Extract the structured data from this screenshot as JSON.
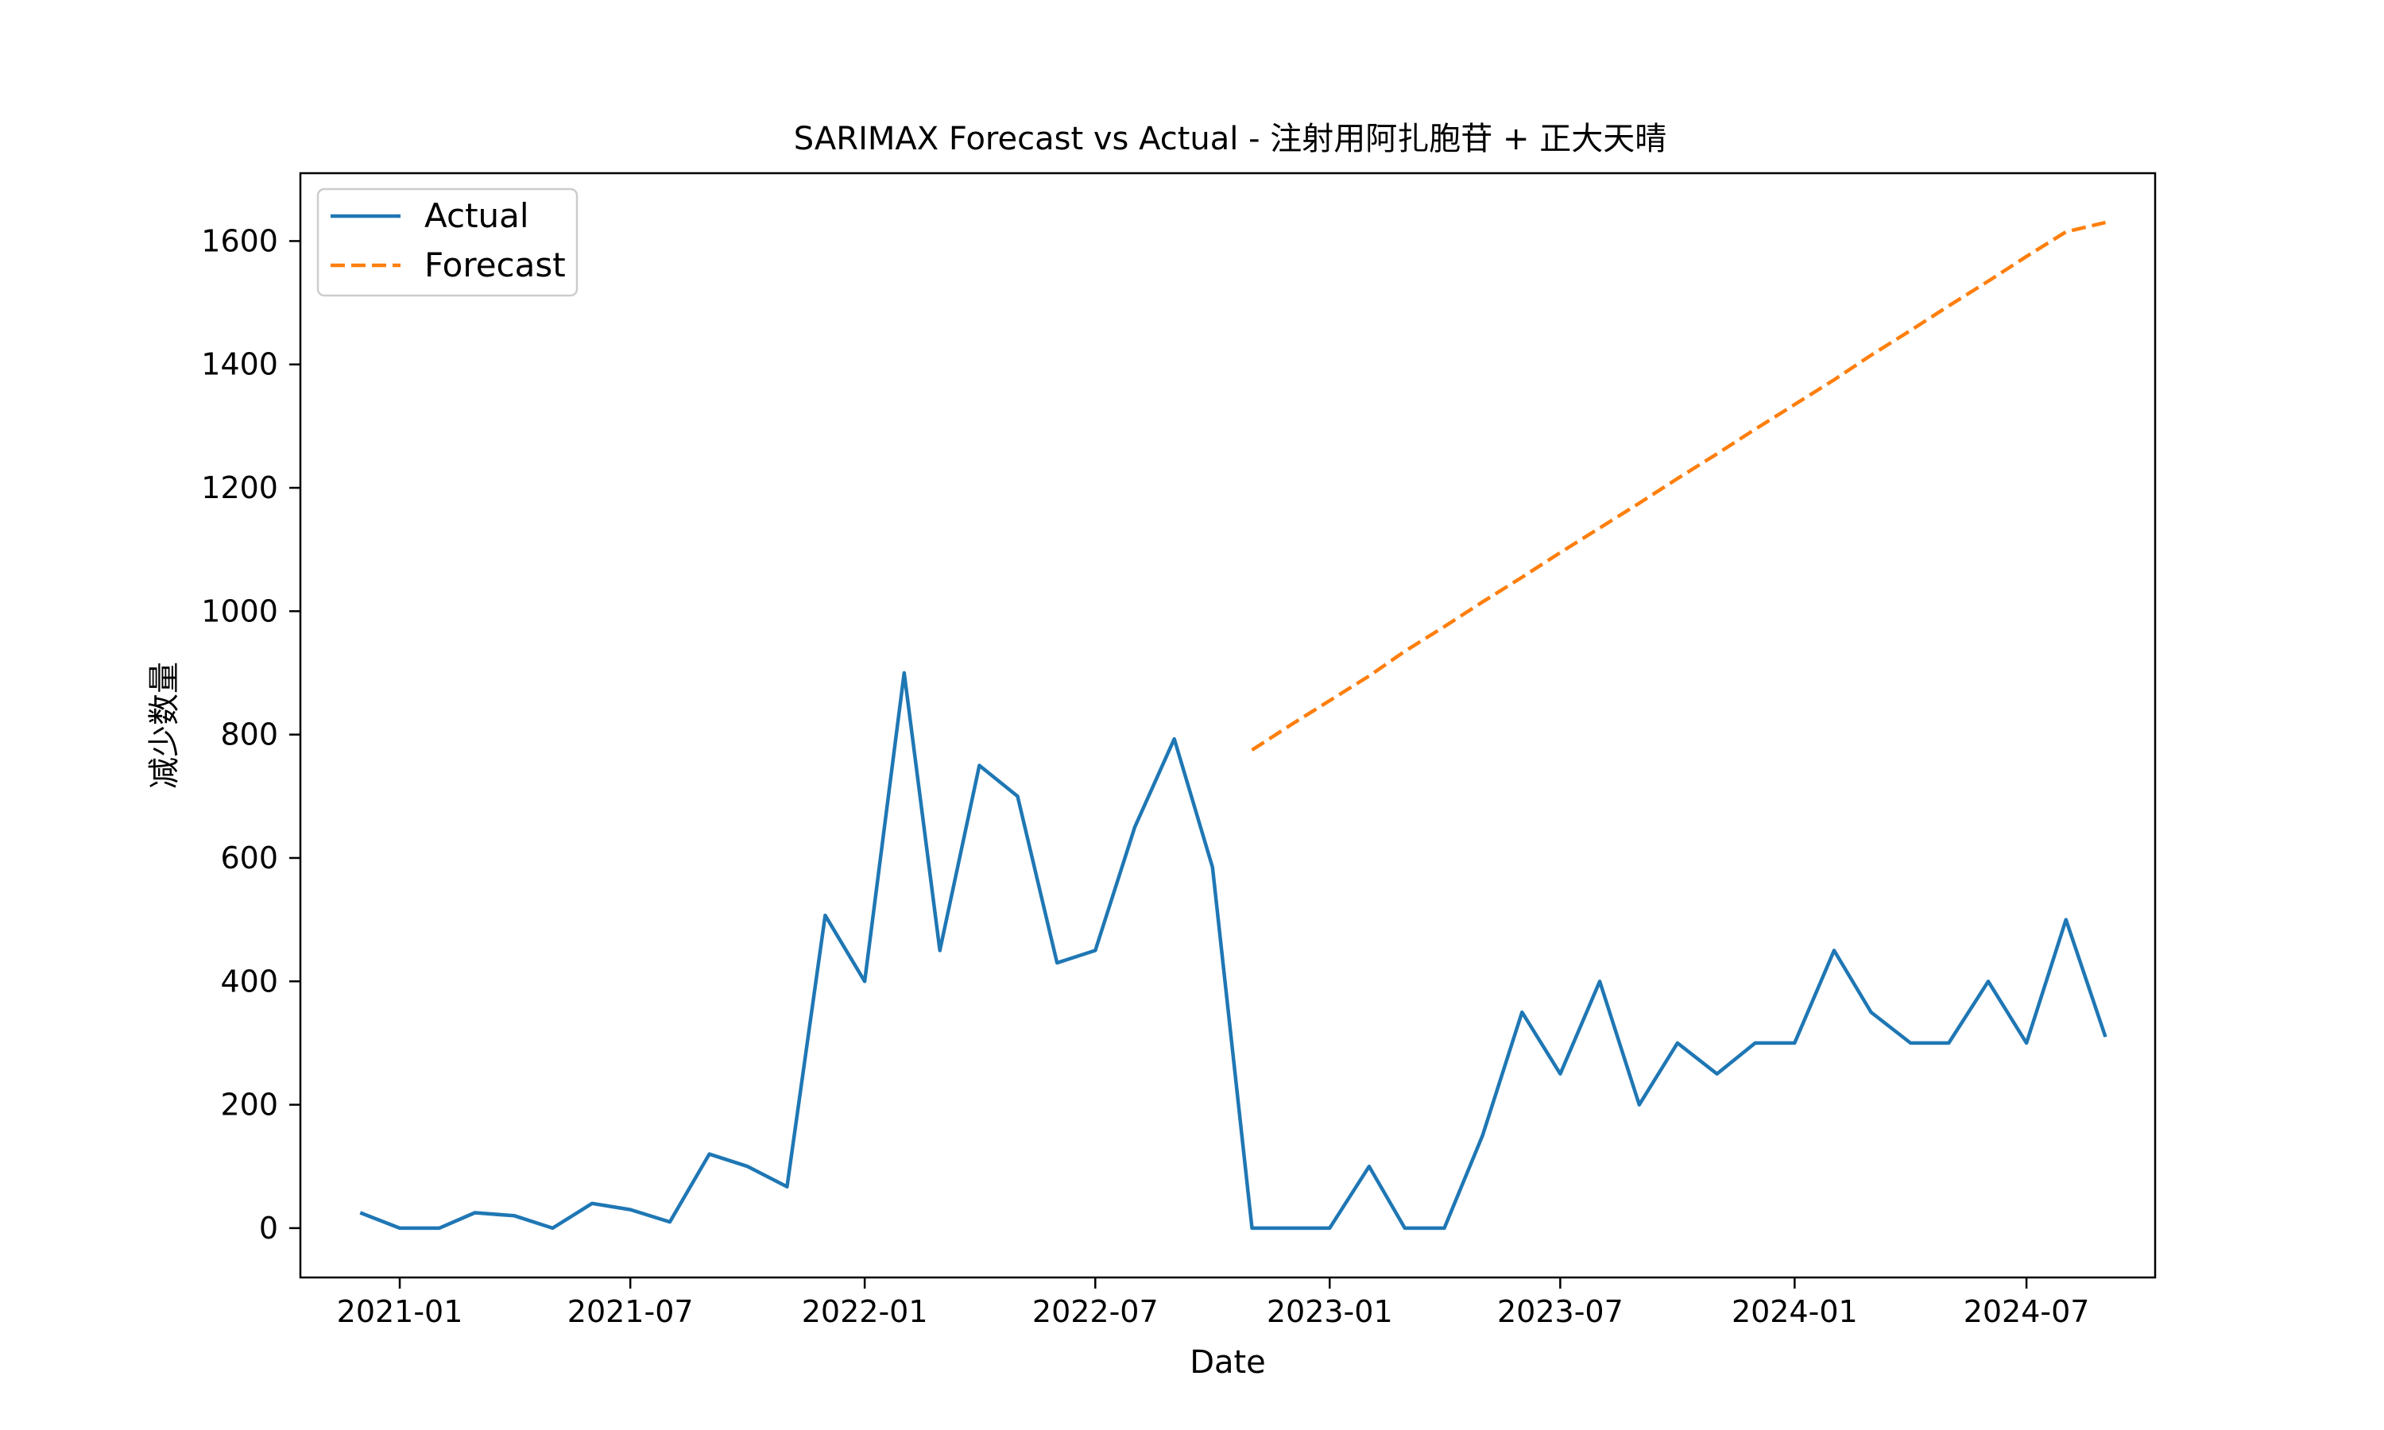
{
  "chart_data": {
    "type": "line",
    "title": "SARIMAX Forecast vs Actual - 注射用阿扎胞苷 + 正大天晴",
    "xlabel": "Date",
    "ylabel": "减少数量",
    "ylim": [
      -80,
      1710
    ],
    "yticks": [
      0,
      200,
      400,
      600,
      800,
      1000,
      1200,
      1400,
      1600
    ],
    "xlim": [
      "2020-10-15",
      "2024-10-10"
    ],
    "xticks": [
      "2021-01",
      "2021-07",
      "2022-01",
      "2022-07",
      "2023-01",
      "2023-07",
      "2024-01",
      "2024-07"
    ],
    "grid": false,
    "legend_position": "top-left",
    "series": [
      {
        "name": "Actual",
        "style": "solid",
        "color": "#1f77b4",
        "x": [
          "2020-12-01",
          "2021-01-01",
          "2021-02-01",
          "2021-03-01",
          "2021-04-01",
          "2021-05-01",
          "2021-06-01",
          "2021-07-01",
          "2021-08-01",
          "2021-09-01",
          "2021-10-01",
          "2021-11-01",
          "2021-12-01",
          "2022-01-01",
          "2022-02-01",
          "2022-03-01",
          "2022-04-01",
          "2022-05-01",
          "2022-06-01",
          "2022-07-01",
          "2022-08-01",
          "2022-09-01",
          "2022-10-01",
          "2022-11-01",
          "2022-12-01",
          "2023-01-01",
          "2023-02-01",
          "2023-03-01",
          "2023-04-01",
          "2023-05-01",
          "2023-06-01",
          "2023-07-01",
          "2023-08-01",
          "2023-09-01",
          "2023-10-01",
          "2023-11-01",
          "2023-12-01",
          "2024-01-01",
          "2024-02-01",
          "2024-03-01",
          "2024-04-01",
          "2024-05-01",
          "2024-06-01",
          "2024-07-01",
          "2024-08-01",
          "2024-09-01"
        ],
        "values": [
          25,
          0,
          0,
          25,
          20,
          0,
          40,
          30,
          10,
          120,
          100,
          67,
          507,
          400,
          900,
          450,
          750,
          700,
          430,
          450,
          650,
          793,
          585,
          0,
          0,
          0,
          100,
          0,
          0,
          150,
          350,
          250,
          400,
          200,
          300,
          250,
          300,
          300,
          450,
          350,
          300,
          300,
          400,
          300,
          500,
          310
        ]
      },
      {
        "name": "Forecast",
        "style": "dashed",
        "color": "#ff7f0e",
        "x": [
          "2022-11-01",
          "2022-12-01",
          "2023-01-01",
          "2023-02-01",
          "2023-03-01",
          "2023-04-01",
          "2023-05-01",
          "2023-06-01",
          "2023-07-01",
          "2023-08-01",
          "2023-09-01",
          "2023-10-01",
          "2023-11-01",
          "2023-12-01",
          "2024-01-01",
          "2024-02-01",
          "2024-03-01",
          "2024-04-01",
          "2024-05-01",
          "2024-06-01",
          "2024-07-01",
          "2024-08-01",
          "2024-09-01"
        ],
        "values": [
          775,
          815,
          855,
          895,
          935,
          975,
          1015,
          1055,
          1095,
          1135,
          1175,
          1215,
          1255,
          1295,
          1335,
          1375,
          1415,
          1455,
          1495,
          1535,
          1575,
          1615,
          1630
        ]
      }
    ]
  }
}
